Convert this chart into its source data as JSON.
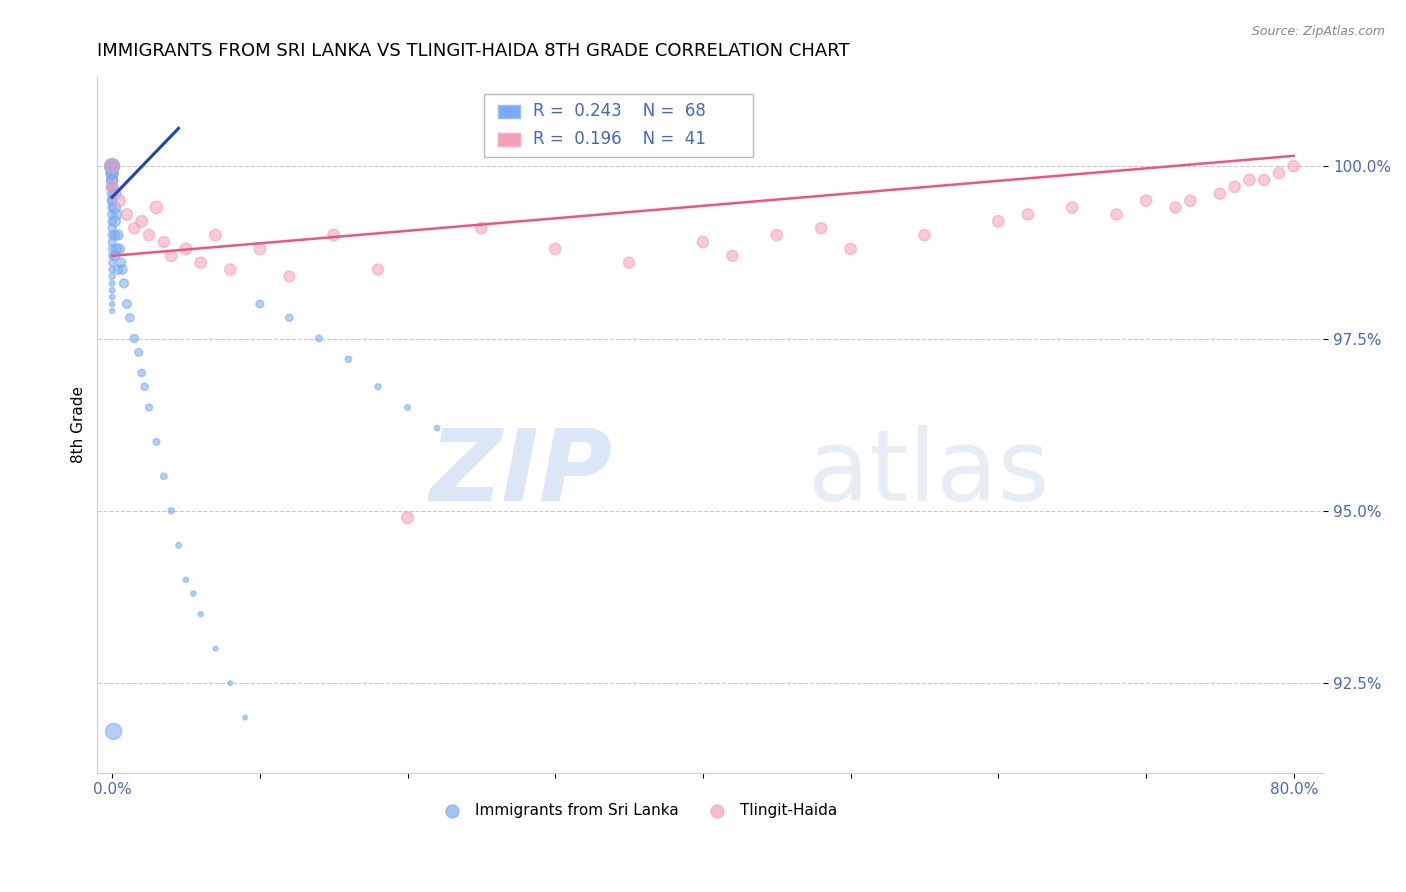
{
  "title": "IMMIGRANTS FROM SRI LANKA VS TLINGIT-HAIDA 8TH GRADE CORRELATION CHART",
  "source": "Source: ZipAtlas.com",
  "ylabel": "8th Grade",
  "xlim": [
    -1.0,
    82.0
  ],
  "ylim": [
    91.2,
    101.3
  ],
  "yticks": [
    92.5,
    95.0,
    97.5,
    100.0
  ],
  "ytick_labels": [
    "92.5%",
    "95.0%",
    "97.5%",
    "100.0%"
  ],
  "xticks": [
    0.0,
    10.0,
    20.0,
    30.0,
    40.0,
    50.0,
    60.0,
    70.0,
    80.0
  ],
  "xtick_labels": [
    "0.0%",
    "",
    "",
    "",
    "",
    "",
    "",
    "",
    "80.0%"
  ],
  "blue_color": "#7aaaf5",
  "pink_color": "#f5a0b8",
  "blue_line_color": "#2244bb",
  "pink_line_color": "#ee5577",
  "R_blue": 0.243,
  "N_blue": 68,
  "R_pink": 0.196,
  "N_pink": 41,
  "legend_label_blue": "Immigrants from Sri Lanka",
  "legend_label_pink": "Tlingit-Haida",
  "watermark_zip": "ZIP",
  "watermark_atlas": "atlas",
  "grid_color": "#bbbbbb",
  "background_color": "#ffffff",
  "title_fontsize": 13,
  "tick_label_color": "#4466cc",
  "blue_x": [
    0.0,
    0.0,
    0.0,
    0.0,
    0.0,
    0.0,
    0.0,
    0.0,
    0.0,
    0.0,
    0.0,
    0.0,
    0.0,
    0.0,
    0.0,
    0.0,
    0.0,
    0.0,
    0.0,
    0.0,
    0.0,
    0.0,
    0.0,
    0.0,
    0.0,
    0.0,
    0.0,
    0.0,
    0.0,
    0.0,
    0.2,
    0.2,
    0.2,
    0.2,
    0.2,
    0.3,
    0.3,
    0.4,
    0.4,
    0.5,
    0.6,
    0.7,
    0.8,
    1.0,
    1.2,
    1.5,
    1.8,
    2.0,
    2.2,
    2.5,
    3.0,
    3.5,
    4.0,
    4.5,
    5.0,
    5.5,
    6.0,
    7.0,
    8.0,
    9.0,
    10.0,
    12.0,
    14.0,
    16.0,
    18.0,
    20.0,
    22.0,
    0.1
  ],
  "blue_y": [
    100.0,
    100.0,
    100.0,
    100.0,
    100.0,
    99.9,
    99.9,
    99.8,
    99.8,
    99.7,
    99.7,
    99.6,
    99.5,
    99.5,
    99.4,
    99.3,
    99.2,
    99.1,
    99.0,
    98.9,
    98.8,
    98.7,
    98.6,
    98.5,
    98.4,
    98.3,
    98.2,
    98.1,
    98.0,
    97.9,
    99.6,
    99.4,
    99.2,
    99.0,
    98.7,
    99.3,
    98.8,
    99.0,
    98.5,
    98.8,
    98.6,
    98.5,
    98.3,
    98.0,
    97.8,
    97.5,
    97.3,
    97.0,
    96.8,
    96.5,
    96.0,
    95.5,
    95.0,
    94.5,
    94.0,
    93.8,
    93.5,
    93.0,
    92.5,
    92.0,
    98.0,
    97.8,
    97.5,
    97.2,
    96.8,
    96.5,
    96.2,
    91.8
  ],
  "blue_size": [
    120,
    100,
    90,
    85,
    80,
    75,
    70,
    65,
    60,
    55,
    50,
    45,
    42,
    40,
    38,
    36,
    34,
    32,
    30,
    28,
    26,
    24,
    22,
    20,
    18,
    16,
    15,
    14,
    13,
    12,
    70,
    60,
    55,
    50,
    45,
    55,
    50,
    50,
    45,
    48,
    45,
    42,
    40,
    38,
    35,
    33,
    30,
    28,
    26,
    24,
    22,
    20,
    18,
    16,
    14,
    13,
    12,
    11,
    10,
    10,
    30,
    25,
    22,
    20,
    18,
    16,
    14,
    130
  ],
  "pink_x": [
    0.0,
    0.0,
    0.5,
    1.0,
    1.5,
    2.0,
    2.5,
    3.0,
    3.5,
    4.0,
    5.0,
    6.0,
    7.0,
    8.0,
    10.0,
    12.0,
    15.0,
    18.0,
    20.0,
    25.0,
    30.0,
    35.0,
    40.0,
    42.0,
    45.0,
    48.0,
    50.0,
    55.0,
    60.0,
    62.0,
    65.0,
    68.0,
    70.0,
    72.0,
    73.0,
    75.0,
    76.0,
    77.0,
    78.0,
    79.0,
    80.0
  ],
  "pink_y": [
    100.0,
    99.7,
    99.5,
    99.3,
    99.1,
    99.2,
    99.0,
    99.4,
    98.9,
    98.7,
    98.8,
    98.6,
    99.0,
    98.5,
    98.8,
    98.4,
    99.0,
    98.5,
    94.9,
    99.1,
    98.8,
    98.6,
    98.9,
    98.7,
    99.0,
    99.1,
    98.8,
    99.0,
    99.2,
    99.3,
    99.4,
    99.3,
    99.5,
    99.4,
    99.5,
    99.6,
    99.7,
    99.8,
    99.8,
    99.9,
    100.0
  ],
  "pink_size": [
    90,
    75,
    70,
    68,
    65,
    70,
    65,
    80,
    62,
    68,
    70,
    65,
    70,
    65,
    70,
    60,
    70,
    60,
    70,
    65,
    65,
    62,
    65,
    62,
    65,
    65,
    65,
    65,
    65,
    65,
    65,
    65,
    65,
    65,
    65,
    65,
    65,
    65,
    65,
    65,
    65
  ],
  "blue_trend_x": [
    0.0,
    4.5
  ],
  "blue_trend_y": [
    99.55,
    100.55
  ],
  "pink_trend_x": [
    0.0,
    80.0
  ],
  "pink_trend_y": [
    98.7,
    100.15
  ]
}
